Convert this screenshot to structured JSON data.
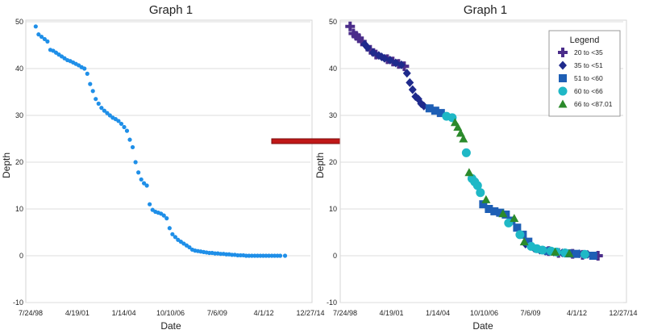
{
  "chart_data": [
    {
      "type": "scatter",
      "title": "Graph 1",
      "xlabel": "Date",
      "ylabel": "Depth",
      "x_ticks": [
        "7/24/98",
        "4/19/01",
        "1/14/04",
        "10/10/06",
        "7/6/09",
        "4/1/12",
        "12/27/14"
      ],
      "x_range": [
        "1998-07-24",
        "2014-12-27"
      ],
      "ylim": [
        -10,
        50
      ],
      "y_ticks": [
        -10,
        0,
        10,
        20,
        30,
        40,
        50
      ],
      "grid": "horizontal",
      "legend": null,
      "marker_color": "#1f8fe8",
      "series": [
        {
          "name": "",
          "x": [
            "1998-11-10",
            "1999-01-10",
            "1999-03-15",
            "1999-05-20",
            "1999-07-20",
            "1999-09-20",
            "1999-11-20",
            "2000-01-20",
            "2000-03-20",
            "2000-05-20",
            "2000-07-20",
            "2000-09-20",
            "2000-11-20",
            "2001-01-20",
            "2001-03-20",
            "2001-05-20",
            "2001-07-20",
            "2001-09-20",
            "2001-11-20",
            "2002-01-20",
            "2002-03-20",
            "2002-05-20",
            "2002-07-20",
            "2002-09-20",
            "2002-11-20",
            "2003-01-20",
            "2003-03-20",
            "2003-05-20",
            "2003-07-20",
            "2003-09-20",
            "2003-11-20",
            "2004-01-20",
            "2004-03-20",
            "2004-05-20",
            "2004-07-20",
            "2004-09-20",
            "2004-11-20",
            "2005-01-20",
            "2005-03-20",
            "2005-05-20",
            "2005-07-20",
            "2005-09-20",
            "2005-11-20",
            "2006-01-20",
            "2006-03-20",
            "2006-05-20",
            "2006-07-20",
            "2006-09-20",
            "2006-11-20",
            "2007-01-20",
            "2007-03-20",
            "2007-05-20",
            "2007-07-20",
            "2007-09-20",
            "2007-11-20",
            "2008-01-20",
            "2008-03-20",
            "2008-05-20",
            "2008-07-20",
            "2008-09-20",
            "2008-11-20",
            "2009-01-20",
            "2009-03-20",
            "2009-05-20",
            "2009-07-20",
            "2009-09-20",
            "2009-11-20",
            "2010-01-20",
            "2010-03-20",
            "2010-05-20",
            "2010-07-20",
            "2010-09-20",
            "2010-11-20",
            "2011-01-20",
            "2011-03-20",
            "2011-05-20",
            "2011-07-20",
            "2011-09-20",
            "2011-11-20",
            "2012-01-20",
            "2012-03-20",
            "2012-05-20",
            "2012-07-20",
            "2012-09-20",
            "2012-11-20",
            "2013-01-20",
            "2013-03-20",
            "2013-07-01"
          ],
          "y": [
            49,
            47.3,
            46.8,
            46.3,
            45.8,
            44,
            43.8,
            43.4,
            43,
            42.6,
            42.2,
            41.8,
            41.6,
            41.3,
            41,
            40.7,
            40.3,
            40,
            38.9,
            36.7,
            35.2,
            33.5,
            32.5,
            31.6,
            31,
            30.5,
            30,
            29.5,
            29.2,
            28.8,
            28.2,
            27.5,
            26.7,
            24.8,
            23.2,
            20,
            17.8,
            16.3,
            15.5,
            15,
            11,
            9.8,
            9.4,
            9.2,
            9,
            8.6,
            8,
            5.9,
            4.6,
            4,
            3.4,
            3,
            2.6,
            2.2,
            1.8,
            1.3,
            1.1,
            1,
            0.9,
            0.8,
            0.7,
            0.6,
            0.6,
            0.5,
            0.5,
            0.4,
            0.4,
            0.3,
            0.3,
            0.2,
            0.2,
            0.1,
            0.1,
            0.1,
            0,
            0,
            0,
            0,
            0,
            0,
            0,
            0,
            0,
            0,
            0,
            0,
            0,
            0
          ]
        }
      ]
    },
    {
      "type": "scatter",
      "title": "Graph 1",
      "xlabel": "Date",
      "ylabel": "Depth",
      "x_ticks": [
        "7/24/98",
        "4/19/01",
        "1/14/04",
        "10/10/06",
        "7/6/09",
        "4/1/12",
        "12/27/14"
      ],
      "x_range": [
        "1998-07-24",
        "2014-12-27"
      ],
      "ylim": [
        -10,
        50
      ],
      "y_ticks": [
        -10,
        0,
        10,
        20,
        30,
        40,
        50
      ],
      "grid": "horizontal",
      "legend": {
        "title": "Legend",
        "position": "top-right"
      },
      "series": [
        {
          "name": "20 to <35",
          "marker": "plus",
          "color": "#4b2d8a",
          "x": [
            "1998-11-10",
            "1999-01-20",
            "1999-03-20",
            "1999-05-20",
            "1999-07-20",
            "2000-01-20",
            "2000-05-20",
            "2001-01-20",
            "2001-05-20",
            "2001-09-20",
            "2002-01-20",
            "2010-08-01",
            "2011-03-01",
            "2012-01-01",
            "2012-08-01",
            "2013-07-01"
          ],
          "y": [
            49,
            47.5,
            47,
            46.5,
            45.8,
            44,
            43,
            42,
            41.5,
            41,
            40.5,
            1,
            0.6,
            0.4,
            0.2,
            0
          ]
        },
        {
          "name": "35 to <51",
          "marker": "diamond",
          "color": "#1f2a8c",
          "x": [
            "1999-09-20",
            "1999-11-20",
            "2000-03-20",
            "2000-07-20",
            "2000-09-20",
            "2000-11-20",
            "2001-03-20",
            "2001-07-20",
            "2001-11-20",
            "2002-03-20",
            "2002-05-20",
            "2002-07-20",
            "2002-09-20",
            "2002-11-20",
            "2003-01-20",
            "2003-03-20",
            "2009-03-20",
            "2009-09-20",
            "2010-01-20",
            "2010-05-20",
            "2010-11-20",
            "2011-05-20",
            "2011-11-20",
            "2012-05-20",
            "2012-11-20"
          ],
          "y": [
            45.2,
            44.5,
            43.4,
            42.8,
            42.5,
            42.2,
            41.8,
            41.2,
            40.8,
            39,
            37,
            35.5,
            34,
            33.5,
            32.5,
            32,
            2.5,
            1.6,
            1.2,
            1,
            0.8,
            0.6,
            0.5,
            0.4,
            0.3
          ]
        },
        {
          "name": "51 to <60",
          "marker": "square",
          "color": "#1e5fb5",
          "x": [
            "2003-07-20",
            "2003-11-20",
            "2004-03-20",
            "2006-09-20",
            "2007-01-20",
            "2007-05-20",
            "2007-09-20",
            "2008-01-20",
            "2008-05-20",
            "2008-09-20",
            "2009-01-20",
            "2009-05-20",
            "2010-07-20",
            "2011-09-20",
            "2012-03-20",
            "2013-03-20"
          ],
          "y": [
            31.5,
            31,
            30.5,
            11,
            10,
            9.5,
            9.2,
            8.8,
            7.5,
            6,
            4.5,
            3,
            1,
            0.5,
            0.4,
            0
          ]
        },
        {
          "name": "60 to <66",
          "marker": "circle",
          "color": "#1fb8c6",
          "x": [
            "2004-07-20",
            "2004-11-20",
            "2005-09-20",
            "2006-01-20",
            "2006-03-20",
            "2006-05-20",
            "2006-07-20",
            "2008-03-20",
            "2008-11-20",
            "2009-07-20",
            "2009-11-20",
            "2010-03-20",
            "2010-09-20",
            "2011-01-20",
            "2011-07-20",
            "2012-09-20"
          ],
          "y": [
            29.8,
            29.5,
            22,
            16.5,
            15.8,
            15,
            13.5,
            7,
            4.5,
            2,
            1.5,
            1.2,
            1,
            0.8,
            0.6,
            0.3
          ]
        },
        {
          "name": "66 to <87.01",
          "marker": "triangle",
          "color": "#2b8a2b",
          "x": [
            "2005-01-20",
            "2005-03-20",
            "2005-05-20",
            "2005-07-20",
            "2005-11-20",
            "2006-11-20",
            "2007-11-20",
            "2008-07-20",
            "2009-02-20",
            "2010-12-20",
            "2011-10-20"
          ],
          "y": [
            28.5,
            27.5,
            26.2,
            25,
            17.8,
            12,
            9,
            8,
            3,
            0.8,
            0.5
          ]
        }
      ]
    }
  ]
}
